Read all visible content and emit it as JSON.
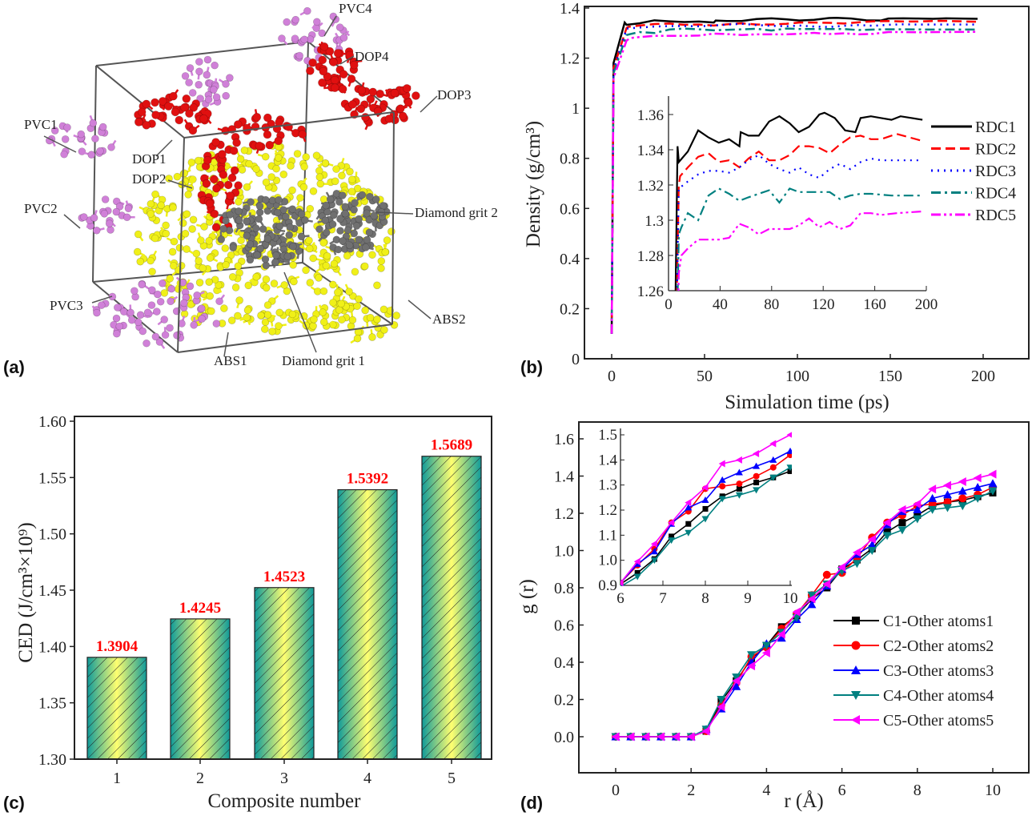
{
  "panel_labels": {
    "a": "(a)",
    "b": "(b)",
    "c": "(c)",
    "d": "(d)"
  },
  "panel_a": {
    "labels": [
      "PVC4",
      "DOP4",
      "DOP3",
      "PVC1",
      "DOP1",
      "DOP2",
      "PVC2",
      "Diamond grit 2",
      "PVC3",
      "ABS2",
      "ABS1",
      "Diamond grit 1"
    ],
    "colors": {
      "ABS": "#f0f018",
      "DOP": "#e01010",
      "PVC": "#d080d8",
      "Diamond": "#707070"
    }
  },
  "chart_data": [
    {
      "id": "b",
      "type": "line",
      "xlabel": "Simulation time (ps)",
      "ylabel": "Density (g/cm³)",
      "xlim": [
        -12,
        224
      ],
      "ylim": [
        0.0,
        1.4
      ],
      "xticks": [
        0,
        50,
        100,
        150,
        200
      ],
      "yticks": [
        0.0,
        0.2,
        0.4,
        0.6,
        0.8,
        1.0,
        1.2,
        1.4
      ],
      "legend_position": "right (inside inset)",
      "series": [
        {
          "name": "RDC1",
          "color": "#000000",
          "dash": "solid",
          "points": [
            [
              0,
              0.1
            ],
            [
              1,
              1.18
            ],
            [
              7,
              1.342
            ],
            [
              8,
              1.333
            ],
            [
              15,
              1.339
            ],
            [
              23,
              1.351
            ],
            [
              31,
              1.347
            ],
            [
              39,
              1.344
            ],
            [
              47,
              1.346
            ],
            [
              55,
              1.342
            ],
            [
              56,
              1.35
            ],
            [
              62,
              1.348
            ],
            [
              70,
              1.348
            ],
            [
              78,
              1.356
            ],
            [
              86,
              1.359
            ],
            [
              94,
              1.355
            ],
            [
              101,
              1.35
            ],
            [
              109,
              1.353
            ],
            [
              117,
              1.36
            ],
            [
              121,
              1.361
            ],
            [
              129,
              1.358
            ],
            [
              137,
              1.351
            ],
            [
              145,
              1.35
            ],
            [
              149,
              1.358
            ],
            [
              157,
              1.359
            ],
            [
              165,
              1.358
            ],
            [
              173,
              1.357
            ],
            [
              180,
              1.359
            ],
            [
              197,
              1.357
            ]
          ]
        },
        {
          "name": "RDC2",
          "color": "#ff0000",
          "dash": "dashed",
          "points": [
            [
              0,
              0.1
            ],
            [
              1,
              1.16
            ],
            [
              8,
              1.32
            ],
            [
              9,
              1.325
            ],
            [
              15,
              1.33
            ],
            [
              23,
              1.336
            ],
            [
              31,
              1.338
            ],
            [
              39,
              1.333
            ],
            [
              47,
              1.334
            ],
            [
              55,
              1.33
            ],
            [
              62,
              1.335
            ],
            [
              70,
              1.339
            ],
            [
              78,
              1.334
            ],
            [
              86,
              1.334
            ],
            [
              94,
              1.337
            ],
            [
              101,
              1.342
            ],
            [
              109,
              1.342
            ],
            [
              117,
              1.341
            ],
            [
              125,
              1.338
            ],
            [
              133,
              1.343
            ],
            [
              141,
              1.347
            ],
            [
              149,
              1.348
            ],
            [
              157,
              1.346
            ],
            [
              165,
              1.346
            ],
            [
              177,
              1.349
            ],
            [
              197,
              1.345
            ]
          ]
        },
        {
          "name": "RDC3",
          "color": "#0000ff",
          "dash": "dotted",
          "points": [
            [
              0,
              0.1
            ],
            [
              1,
              1.15
            ],
            [
              8,
              1.318
            ],
            [
              15,
              1.322
            ],
            [
              23,
              1.326
            ],
            [
              31,
              1.328
            ],
            [
              39,
              1.328
            ],
            [
              47,
              1.327
            ],
            [
              55,
              1.33
            ],
            [
              62,
              1.334
            ],
            [
              70,
              1.337
            ],
            [
              78,
              1.332
            ],
            [
              86,
              1.329
            ],
            [
              94,
              1.327
            ],
            [
              101,
              1.33
            ],
            [
              109,
              1.326
            ],
            [
              117,
              1.324
            ],
            [
              125,
              1.329
            ],
            [
              133,
              1.332
            ],
            [
              141,
              1.329
            ],
            [
              149,
              1.333
            ],
            [
              157,
              1.335
            ],
            [
              165,
              1.334
            ],
            [
              177,
              1.334
            ],
            [
              197,
              1.334
            ]
          ]
        },
        {
          "name": "RDC4",
          "color": "#008080",
          "dash": "dash-dot",
          "points": [
            [
              0,
              0.1
            ],
            [
              1,
              1.14
            ],
            [
              8,
              1.292
            ],
            [
              10,
              1.296
            ],
            [
              15,
              1.304
            ],
            [
              23,
              1.3
            ],
            [
              31,
              1.314
            ],
            [
              39,
              1.318
            ],
            [
              47,
              1.315
            ],
            [
              55,
              1.311
            ],
            [
              62,
              1.313
            ],
            [
              70,
              1.315
            ],
            [
              78,
              1.317
            ],
            [
              86,
              1.31
            ],
            [
              94,
              1.318
            ],
            [
              101,
              1.316
            ],
            [
              109,
              1.316
            ],
            [
              117,
              1.316
            ],
            [
              125,
              1.316
            ],
            [
              133,
              1.312
            ],
            [
              141,
              1.314
            ],
            [
              149,
              1.315
            ],
            [
              157,
              1.315
            ],
            [
              173,
              1.314
            ],
            [
              197,
              1.314
            ]
          ]
        },
        {
          "name": "RDC5",
          "color": "#ff00ff",
          "dash": "dash-dot-dot",
          "points": [
            [
              0,
              0.1
            ],
            [
              1,
              1.12
            ],
            [
              8,
              1.27
            ],
            [
              10,
              1.28
            ],
            [
              15,
              1.284
            ],
            [
              23,
              1.289
            ],
            [
              31,
              1.289
            ],
            [
              39,
              1.289
            ],
            [
              47,
              1.29
            ],
            [
              55,
              1.298
            ],
            [
              62,
              1.296
            ],
            [
              70,
              1.292
            ],
            [
              78,
              1.295
            ],
            [
              86,
              1.295
            ],
            [
              94,
              1.295
            ],
            [
              101,
              1.297
            ],
            [
              109,
              1.301
            ],
            [
              117,
              1.296
            ],
            [
              125,
              1.299
            ],
            [
              133,
              1.295
            ],
            [
              141,
              1.297
            ],
            [
              149,
              1.304
            ],
            [
              157,
              1.304
            ],
            [
              165,
              1.303
            ],
            [
              177,
              1.304
            ],
            [
              197,
              1.305
            ]
          ]
        }
      ],
      "inset": {
        "xlim": [
          0,
          200
        ],
        "ylim": [
          1.26,
          1.37
        ],
        "xticks": [
          0,
          40,
          80,
          120,
          160,
          200
        ],
        "yticks": [
          1.26,
          1.28,
          1.3,
          1.32,
          1.34,
          1.36
        ]
      }
    },
    {
      "id": "c",
      "type": "bar",
      "xlabel": "Composite number",
      "ylabel": "CED (J/cm³×10⁹)",
      "categories": [
        "1",
        "2",
        "3",
        "4",
        "5"
      ],
      "values": [
        1.3904,
        1.4245,
        1.4523,
        1.5392,
        1.5689
      ],
      "data_labels": [
        "1.3904",
        "1.4245",
        "1.4523",
        "1.5392",
        "1.5689"
      ],
      "ylim": [
        1.3,
        1.6
      ],
      "yticks": [
        "1.30",
        "1.35",
        "1.40",
        "1.45",
        "1.50",
        "1.55",
        "1.60"
      ],
      "bar_fill": "gradient teal-yellow with diagonal hatch",
      "colors": {
        "edge": "#008080",
        "center": "#ffff66",
        "label": "#ff0000"
      }
    },
    {
      "id": "d",
      "type": "line",
      "xlabel": "r (Å)",
      "ylabel": "g (r)",
      "xlim": [
        -1,
        11.3
      ],
      "ylim": [
        -0.1,
        1.7
      ],
      "xticks": [
        0,
        2,
        4,
        6,
        8,
        10
      ],
      "yticks": [
        "0.0",
        "0.2",
        "0.4",
        "0.6",
        "0.8",
        "1.0",
        "1.2",
        "1.4",
        "1.6"
      ],
      "legend_position": "bottom-right",
      "x": [
        0,
        0.4,
        0.8,
        1.2,
        1.6,
        2.0,
        2.4,
        2.8,
        3.2,
        3.6,
        4.0,
        4.4,
        4.8,
        5.2,
        5.6,
        6.0,
        6.4,
        6.8,
        7.2,
        7.6,
        8.0,
        8.4,
        8.8,
        9.2,
        9.6,
        10.0
      ],
      "series": [
        {
          "name": "C1-Other atoms1",
          "color": "#000000",
          "marker": "square",
          "values": [
            0,
            0,
            0,
            0,
            0,
            0,
            0.03,
            0.19,
            0.3,
            0.42,
            0.49,
            0.59,
            0.65,
            0.74,
            0.8,
            0.9,
            0.95,
            1.01,
            1.1,
            1.15,
            1.19,
            1.24,
            1.26,
            1.27,
            1.29,
            1.31
          ]
        },
        {
          "name": "C2-Other atoms2",
          "color": "#ff0000",
          "marker": "circle",
          "values": [
            0,
            0,
            0,
            0,
            0,
            0,
            0.03,
            0.17,
            0.29,
            0.43,
            0.48,
            0.58,
            0.66,
            0.76,
            0.87,
            0.88,
            0.96,
            1.07,
            1.15,
            1.19,
            1.24,
            1.25,
            1.26,
            1.28,
            1.3,
            1.34
          ]
        },
        {
          "name": "C3-Other atoms3",
          "color": "#0000ff",
          "marker": "triangle-up",
          "values": [
            0,
            0,
            0,
            0,
            0,
            0,
            0.04,
            0.15,
            0.27,
            0.4,
            0.5,
            0.53,
            0.63,
            0.71,
            0.81,
            0.9,
            0.98,
            1.03,
            1.14,
            1.21,
            1.22,
            1.28,
            1.3,
            1.32,
            1.34,
            1.36
          ]
        },
        {
          "name": "C4-Other atoms4",
          "color": "#008080",
          "marker": "triangle-down",
          "values": [
            0,
            0,
            0,
            0,
            0,
            0,
            0.04,
            0.2,
            0.32,
            0.44,
            0.49,
            0.56,
            0.64,
            0.76,
            0.82,
            0.89,
            0.93,
            1.0,
            1.08,
            1.11,
            1.17,
            1.22,
            1.23,
            1.24,
            1.28,
            1.32
          ]
        },
        {
          "name": "C5-Other atoms5",
          "color": "#ff00ff",
          "marker": "triangle-left",
          "values": [
            0,
            0,
            0,
            0,
            0,
            0,
            0.03,
            0.16,
            0.3,
            0.38,
            0.45,
            0.55,
            0.67,
            0.74,
            0.82,
            0.91,
            0.99,
            1.06,
            1.15,
            1.22,
            1.25,
            1.33,
            1.35,
            1.37,
            1.39,
            1.41
          ]
        }
      ],
      "inset": {
        "xlim": [
          6,
          10
        ],
        "ylim": [
          0.9,
          1.5
        ],
        "xticks": [
          6,
          7,
          8,
          9,
          10
        ],
        "yticks": [
          "0.9",
          "1.0",
          "1.1",
          "1.2",
          "1.3",
          "1.4",
          "1.5"
        ],
        "x": [
          6.0,
          6.4,
          6.8,
          7.2,
          7.6,
          8.0,
          8.4,
          8.8,
          9.2,
          9.6,
          10.0
        ],
        "values": [
          [
            0.905,
            0.95,
            1.005,
            1.095,
            1.145,
            1.205,
            1.255,
            1.285,
            1.31,
            1.33,
            1.355
          ],
          [
            0.91,
            0.98,
            1.045,
            1.15,
            1.195,
            1.285,
            1.295,
            1.305,
            1.335,
            1.37,
            1.42
          ],
          [
            0.91,
            0.985,
            1.035,
            1.145,
            1.21,
            1.24,
            1.32,
            1.35,
            1.375,
            1.4,
            1.435
          ],
          [
            0.895,
            0.935,
            1.0,
            1.08,
            1.11,
            1.165,
            1.245,
            1.26,
            1.28,
            1.33,
            1.37
          ],
          [
            0.91,
            0.995,
            1.065,
            1.15,
            1.23,
            1.29,
            1.385,
            1.4,
            1.425,
            1.465,
            1.5
          ]
        ]
      }
    }
  ]
}
